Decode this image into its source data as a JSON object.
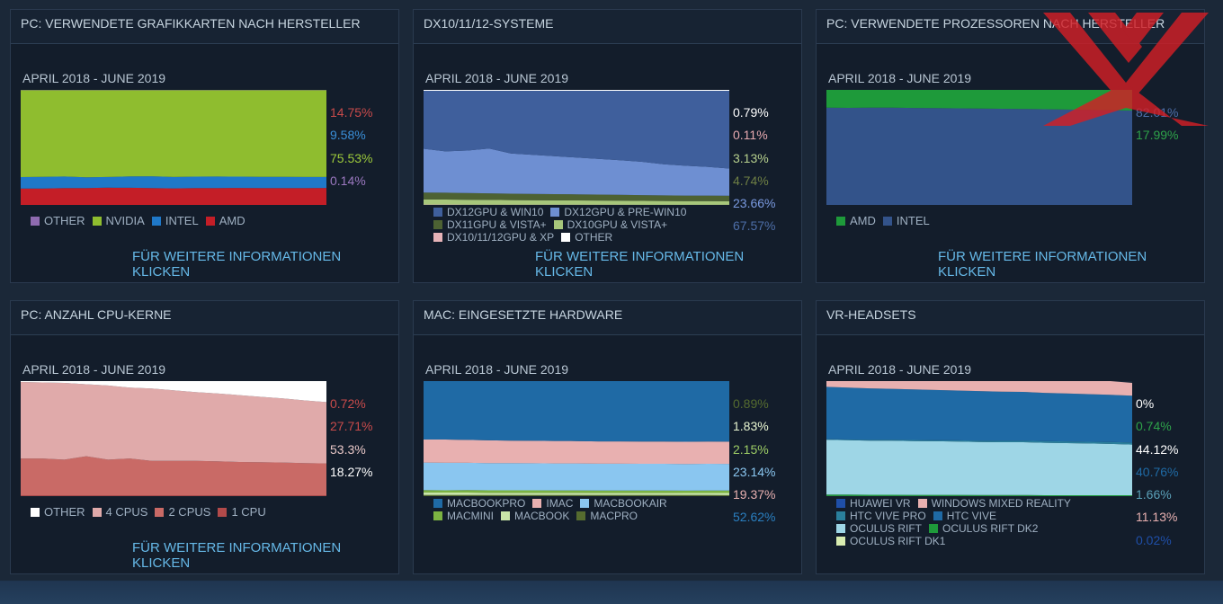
{
  "panels": [
    {
      "title": "PC: VERWENDETE GRAFIKKARTEN NACH HERSTELLER",
      "period": "APRIL 2018 - JUNE 2019",
      "link_text": "FÜR WEITERE INFORMATIONEN KLICKEN",
      "legend_rows": 1,
      "legend": [
        {
          "name": "OTHER",
          "color": "#8f6bb0"
        },
        {
          "name": "NVIDIA",
          "color": "#8fbd2f"
        },
        {
          "name": "INTEL",
          "color": "#1f78c8"
        },
        {
          "name": "AMD",
          "color": "#c41e27"
        }
      ],
      "percents": [
        {
          "text": "14.75%",
          "color": "#c94b4b"
        },
        {
          "text": "9.58%",
          "color": "#3a8fd8"
        },
        {
          "text": "75.53%",
          "color": "#9ecb3b"
        },
        {
          "text": "0.14%",
          "color": "#9b78c0"
        }
      ]
    },
    {
      "title": "DX10/11/12-SYSTEME",
      "period": "APRIL 2018 - JUNE 2019",
      "link_text": "FÜR WEITERE INFORMATIONEN KLICKEN",
      "legend_rows": 3,
      "legend": [
        {
          "name": "DX12GPU & WIN10",
          "color": "#3f5f9c"
        },
        {
          "name": "DX12GPU & Pre-WIN10",
          "color": "#6e8fd2"
        },
        {
          "name": "DX11GPU & Vista+",
          "color": "#4d6233"
        },
        {
          "name": "DX10GPU & Vista+",
          "color": "#a7c77b"
        },
        {
          "name": "DX10/11/12GPU & XP",
          "color": "#e6b3b8"
        },
        {
          "name": "OTHER",
          "color": "#ffffff"
        }
      ],
      "percents": [
        {
          "text": "0.79%",
          "color": "#ffffff"
        },
        {
          "text": "0.11%",
          "color": "#e7aab0"
        },
        {
          "text": "3.13%",
          "color": "#b6d08d"
        },
        {
          "text": "4.74%",
          "color": "#6e7f44"
        },
        {
          "text": "23.66%",
          "color": "#7a9ae0"
        },
        {
          "text": "67.57%",
          "color": "#4d6ea8"
        }
      ]
    },
    {
      "title": "PC: VERWENDETE PROZESSOREN NACH HERSTELLER",
      "period": "APRIL 2018 - JUNE 2019",
      "link_text": "FÜR WEITERE INFORMATIONEN KLICKEN",
      "legend_rows": 1,
      "legend": [
        {
          "name": "AMD",
          "color": "#1e9a3a"
        },
        {
          "name": "INTEL",
          "color": "#33538a"
        }
      ],
      "percents": [
        {
          "text": "82.01%",
          "color": "#4d6ea8"
        },
        {
          "text": "17.99%",
          "color": "#2ea34a"
        }
      ]
    },
    {
      "title": "PC: ANZAHL CPU-KERNE",
      "period": "APRIL 2018 - JUNE 2019",
      "link_text": "FÜR WEITERE INFORMATIONEN KLICKEN",
      "legend_rows": 1,
      "legend": [
        {
          "name": "OTHER",
          "color": "#ffffff"
        },
        {
          "name": "4 CPUS",
          "color": "#e0aaaa"
        },
        {
          "name": "2 CPUS",
          "color": "#c96a66"
        },
        {
          "name": "1 CPU",
          "color": "#b24a4a"
        }
      ],
      "percents": [
        {
          "text": "0.72%",
          "color": "#c94b4b"
        },
        {
          "text": "27.71%",
          "color": "#c94b4b"
        },
        {
          "text": "53.3%",
          "color": "#e8c7c7"
        },
        {
          "text": "18.27%",
          "color": "#ffffff"
        }
      ]
    },
    {
      "title": "MAC: EINGESETZTE HARDWARE",
      "period": "APRIL 2018 - JUNE 2019",
      "link_text": "",
      "legend_rows": 2,
      "legend": [
        {
          "name": "MACBOOKPRO",
          "color": "#1f6aa5"
        },
        {
          "name": "IMAC",
          "color": "#e8b0b0"
        },
        {
          "name": "MACBOOKAIR",
          "color": "#8ac6f0"
        },
        {
          "name": "MACMINI",
          "color": "#7cb342"
        },
        {
          "name": "MACBOOK",
          "color": "#c8e6a8"
        },
        {
          "name": "MACPRO",
          "color": "#556b2f"
        }
      ],
      "percents": [
        {
          "text": "0.89%",
          "color": "#556b2f"
        },
        {
          "text": "1.83%",
          "color": "#e8f5d0"
        },
        {
          "text": "2.15%",
          "color": "#9ccc65"
        },
        {
          "text": "23.14%",
          "color": "#8ac6f0"
        },
        {
          "text": "19.37%",
          "color": "#e8b0b0"
        },
        {
          "text": "52.62%",
          "color": "#2a7fc0"
        }
      ]
    },
    {
      "title": "VR-HEADSETS",
      "period": "APRIL 2018 - JUNE 2019",
      "link_text": "",
      "legend_rows": 4,
      "legend": [
        {
          "name": "HUAWEI VR",
          "color": "#1f4fa8"
        },
        {
          "name": "WINDOWS MIXED REALITY",
          "color": "#e8b0b0"
        },
        {
          "name": "HTC VIVE PRO",
          "color": "#2a7f9c"
        },
        {
          "name": "HTC VIVE",
          "color": "#1f6aa5"
        },
        {
          "name": "OCULUS RIFT",
          "color": "#9ed6e6"
        },
        {
          "name": "OCULUS RIFT DK2",
          "color": "#1e9a3a"
        },
        {
          "name": "OCULUS RIFT DK1",
          "color": "#d8ecb0"
        }
      ],
      "percents": [
        {
          "text": "0%",
          "color": "#ffffff"
        },
        {
          "text": "0.74%",
          "color": "#2ea34a"
        },
        {
          "text": "44.12%",
          "color": "#ffffff"
        },
        {
          "text": "40.76%",
          "color": "#1f6aa5"
        },
        {
          "text": "1.66%",
          "color": "#5aa0b8"
        },
        {
          "text": "11.13%",
          "color": "#e8b0b0"
        },
        {
          "text": "0.02%",
          "color": "#1f4fa8"
        }
      ]
    }
  ],
  "chart_data": [
    {
      "type": "area",
      "title": "PC: VERWENDETE GRAFIKKARTEN NACH HERSTELLER",
      "stacked": true,
      "x": [
        "APRIL 2018",
        "",
        "",
        "",
        "",
        "",
        "",
        "",
        "",
        "",
        "",
        "",
        "",
        "",
        "JUNE 2019"
      ],
      "series": [
        {
          "name": "AMD",
          "color": "#c41e27",
          "values": [
            14.3,
            14.2,
            14.6,
            14.7,
            15.0,
            14.9,
            14.6,
            14.4,
            14.6,
            14.7,
            14.8,
            14.7,
            14.6,
            14.7,
            14.75
          ]
        },
        {
          "name": "INTEL",
          "color": "#1f78c8",
          "values": [
            9.9,
            10.2,
            10.1,
            9.4,
            9.3,
            9.9,
            10.3,
            9.9,
            10.0,
            10.0,
            9.8,
            9.7,
            9.8,
            9.6,
            9.58
          ]
        },
        {
          "name": "NVIDIA",
          "color": "#8fbd2f",
          "values": [
            75.66,
            75.46,
            75.16,
            75.76,
            75.56,
            75.06,
            74.96,
            75.56,
            75.26,
            75.16,
            75.26,
            75.46,
            75.46,
            75.56,
            75.53
          ]
        },
        {
          "name": "OTHER",
          "color": "#8f6bb0",
          "values": [
            0.14,
            0.14,
            0.14,
            0.14,
            0.14,
            0.14,
            0.14,
            0.14,
            0.14,
            0.14,
            0.14,
            0.14,
            0.14,
            0.14,
            0.14
          ]
        }
      ],
      "ylim": [
        0,
        100
      ]
    },
    {
      "type": "area",
      "title": "DX10/11/12-SYSTEME",
      "stacked": true,
      "x": [
        "APRIL 2018",
        "",
        "",
        "",
        "",
        "",
        "",
        "",
        "",
        "",
        "",
        "",
        "",
        "",
        "JUNE 2019"
      ],
      "series": [
        {
          "name": "DX10/11/12GPU & XP",
          "color": "#e6b3b8",
          "values": [
            0.3,
            0.3,
            0.2,
            0.2,
            0.2,
            0.2,
            0.2,
            0.2,
            0.2,
            0.2,
            0.1,
            0.1,
            0.1,
            0.1,
            0.11
          ]
        },
        {
          "name": "DX10GPU & Vista+",
          "color": "#a7c77b",
          "values": [
            4.5,
            4.4,
            4.3,
            4.2,
            4.0,
            3.9,
            3.8,
            3.7,
            3.6,
            3.5,
            3.4,
            3.3,
            3.2,
            3.2,
            3.13
          ]
        },
        {
          "name": "DX11GPU & Vista+",
          "color": "#4d6233",
          "values": [
            6.0,
            5.9,
            5.8,
            5.7,
            5.6,
            5.5,
            5.4,
            5.3,
            5.2,
            5.1,
            5.0,
            4.9,
            4.8,
            4.8,
            4.74
          ]
        },
        {
          "name": "DX12GPU & Pre-WIN10",
          "color": "#6e8fd2",
          "values": [
            38.0,
            36.0,
            37.0,
            39.0,
            35.0,
            34.0,
            33.0,
            32.0,
            31.0,
            30.0,
            29.0,
            27.0,
            26.0,
            25.0,
            23.66
          ]
        },
        {
          "name": "DX12GPU & WIN10",
          "color": "#3f5f9c",
          "values": [
            50.4,
            52.6,
            51.9,
            50.1,
            54.4,
            55.6,
            56.8,
            58.0,
            59.2,
            60.4,
            61.7,
            63.9,
            65.1,
            66.1,
            67.57
          ]
        },
        {
          "name": "OTHER",
          "color": "#ffffff",
          "values": [
            0.8,
            0.8,
            0.8,
            0.8,
            0.8,
            0.8,
            0.8,
            0.8,
            0.8,
            0.8,
            0.8,
            0.8,
            0.8,
            0.8,
            0.79
          ]
        }
      ],
      "ylim": [
        0,
        100
      ]
    },
    {
      "type": "area",
      "title": "PC: VERWENDETE PROZESSOREN NACH HERSTELLER",
      "stacked": true,
      "x": [
        "APRIL 2018",
        "",
        "",
        "",
        "",
        "",
        "",
        "",
        "",
        "",
        "",
        "",
        "",
        "",
        "JUNE 2019"
      ],
      "series": [
        {
          "name": "INTEL",
          "color": "#33538a",
          "values": [
            84.5,
            84.4,
            84.5,
            84.6,
            84.3,
            84.2,
            84.0,
            83.8,
            83.6,
            83.4,
            83.2,
            82.9,
            82.6,
            82.3,
            82.01
          ]
        },
        {
          "name": "AMD",
          "color": "#1e9a3a",
          "values": [
            15.5,
            15.6,
            15.5,
            15.4,
            15.7,
            15.8,
            16.0,
            16.2,
            16.4,
            16.6,
            16.8,
            17.1,
            17.4,
            17.7,
            17.99
          ]
        }
      ],
      "ylim": [
        0,
        100
      ]
    },
    {
      "type": "area",
      "title": "PC: ANZAHL CPU-KERNE",
      "stacked": true,
      "x": [
        "APRIL 2018",
        "",
        "",
        "",
        "",
        "",
        "",
        "",
        "",
        "",
        "",
        "",
        "",
        "",
        "JUNE 2019"
      ],
      "series": [
        {
          "name": "1 CPU",
          "color": "#b24a4a",
          "values": [
            0.7,
            0.7,
            0.7,
            0.7,
            0.7,
            0.7,
            0.7,
            0.7,
            0.7,
            0.7,
            0.7,
            0.7,
            0.7,
            0.7,
            0.72
          ]
        },
        {
          "name": "2 CPUS",
          "color": "#c96a66",
          "values": [
            32.0,
            32.0,
            31.0,
            34.0,
            31.0,
            32.0,
            30.0,
            30.0,
            30.0,
            29.5,
            29.0,
            28.8,
            28.5,
            28.0,
            27.71
          ]
        },
        {
          "name": "4 CPUS",
          "color": "#e0aaaa",
          "values": [
            66.5,
            66.1,
            66.7,
            62.6,
            64.5,
            61.6,
            62.9,
            61.3,
            59.8,
            59.1,
            58.1,
            56.8,
            55.8,
            54.5,
            53.3
          ]
        },
        {
          "name": "OTHER",
          "color": "#ffffff",
          "values": [
            0.8,
            1.2,
            1.6,
            2.7,
            3.8,
            5.7,
            6.4,
            8.0,
            9.5,
            10.7,
            12.2,
            13.7,
            15.0,
            16.8,
            18.27
          ]
        }
      ],
      "ylim": [
        0,
        100
      ]
    },
    {
      "type": "area",
      "title": "MAC: EINGESETZTE HARDWARE",
      "stacked": true,
      "x": [
        "APRIL 2018",
        "",
        "",
        "",
        "",
        "",
        "",
        "",
        "",
        "",
        "",
        "",
        "",
        "",
        "JUNE 2019"
      ],
      "series": [
        {
          "name": "MACPRO",
          "color": "#556b2f",
          "values": [
            1.0,
            1.0,
            1.0,
            1.0,
            1.0,
            1.0,
            1.0,
            1.0,
            0.9,
            0.9,
            0.9,
            0.9,
            0.9,
            0.9,
            0.89
          ]
        },
        {
          "name": "MACBOOK",
          "color": "#c8e6a8",
          "values": [
            2.2,
            2.1,
            2.1,
            2.0,
            2.0,
            2.0,
            1.9,
            1.9,
            1.9,
            1.9,
            1.9,
            1.9,
            1.8,
            1.8,
            1.83
          ]
        },
        {
          "name": "MACMINI",
          "color": "#7cb342",
          "values": [
            2.0,
            2.0,
            2.1,
            2.1,
            2.1,
            2.1,
            2.1,
            2.1,
            2.1,
            2.1,
            2.1,
            2.1,
            2.1,
            2.2,
            2.15
          ]
        },
        {
          "name": "MACBOOKAIR",
          "color": "#8ac6f0",
          "values": [
            24.0,
            23.9,
            23.8,
            23.6,
            23.6,
            23.5,
            23.4,
            23.4,
            23.3,
            23.3,
            23.2,
            23.2,
            23.2,
            23.2,
            23.14
          ]
        },
        {
          "name": "IMAC",
          "color": "#e8b0b0",
          "values": [
            20.0,
            20.2,
            19.9,
            19.8,
            19.6,
            19.5,
            19.6,
            19.5,
            19.4,
            19.4,
            19.4,
            19.3,
            19.3,
            19.3,
            19.37
          ]
        },
        {
          "name": "MACBOOKPRO",
          "color": "#1f6aa5",
          "values": [
            50.8,
            50.8,
            51.1,
            51.5,
            51.7,
            51.9,
            52.0,
            52.1,
            52.4,
            52.4,
            52.5,
            52.6,
            52.7,
            52.6,
            52.62
          ]
        }
      ],
      "ylim": [
        0,
        100
      ]
    },
    {
      "type": "area",
      "title": "VR-HEADSETS",
      "stacked": true,
      "x": [
        "APRIL 2018",
        "",
        "",
        "",
        "",
        "",
        "",
        "",
        "",
        "",
        "",
        "",
        "",
        "",
        "JUNE 2019"
      ],
      "series": [
        {
          "name": "OCULUS RIFT DK1",
          "color": "#d8ecb0",
          "values": [
            0.1,
            0.1,
            0.1,
            0.1,
            0.1,
            0.1,
            0.1,
            0.1,
            0.1,
            0.1,
            0.0,
            0.0,
            0.0,
            0.0,
            0.02
          ]
        },
        {
          "name": "OCULUS RIFT DK2",
          "color": "#1e9a3a",
          "values": [
            1.2,
            1.2,
            1.1,
            1.1,
            1.0,
            1.0,
            1.0,
            0.9,
            0.9,
            0.9,
            0.8,
            0.8,
            0.8,
            0.8,
            0.74
          ]
        },
        {
          "name": "OCULUS RIFT",
          "color": "#9ed6e6",
          "values": [
            47.7,
            47.3,
            47.0,
            47.0,
            46.8,
            46.6,
            46.3,
            46.1,
            45.9,
            45.9,
            45.6,
            45.3,
            45.0,
            44.6,
            44.12
          ]
        },
        {
          "name": "HTC VIVE PRO",
          "color": "#2a7f9c",
          "values": [
            0.5,
            0.6,
            0.7,
            0.8,
            0.9,
            1.0,
            1.1,
            1.2,
            1.3,
            1.4,
            1.4,
            1.5,
            1.5,
            1.6,
            1.66
          ]
        },
        {
          "name": "HTC VIVE",
          "color": "#1f6aa5",
          "values": [
            45.5,
            45.2,
            44.8,
            44.3,
            44.0,
            43.6,
            43.3,
            43.0,
            42.6,
            42.3,
            42.0,
            41.7,
            41.4,
            41.1,
            40.76
          ]
        },
        {
          "name": "WINDOWS MIXED REALITY",
          "color": "#e8b0b0",
          "values": [
            5.0,
            5.6,
            6.3,
            6.7,
            7.2,
            7.7,
            8.2,
            8.7,
            9.2,
            9.4,
            10.2,
            10.7,
            11.3,
            11.9,
            11.13
          ]
        },
        {
          "name": "HUAWEI VR",
          "color": "#1f4fa8",
          "values": [
            0,
            0,
            0,
            0,
            0,
            0,
            0,
            0,
            0,
            0,
            0,
            0,
            0,
            0,
            0
          ]
        }
      ],
      "ylim": [
        0,
        100
      ]
    }
  ]
}
